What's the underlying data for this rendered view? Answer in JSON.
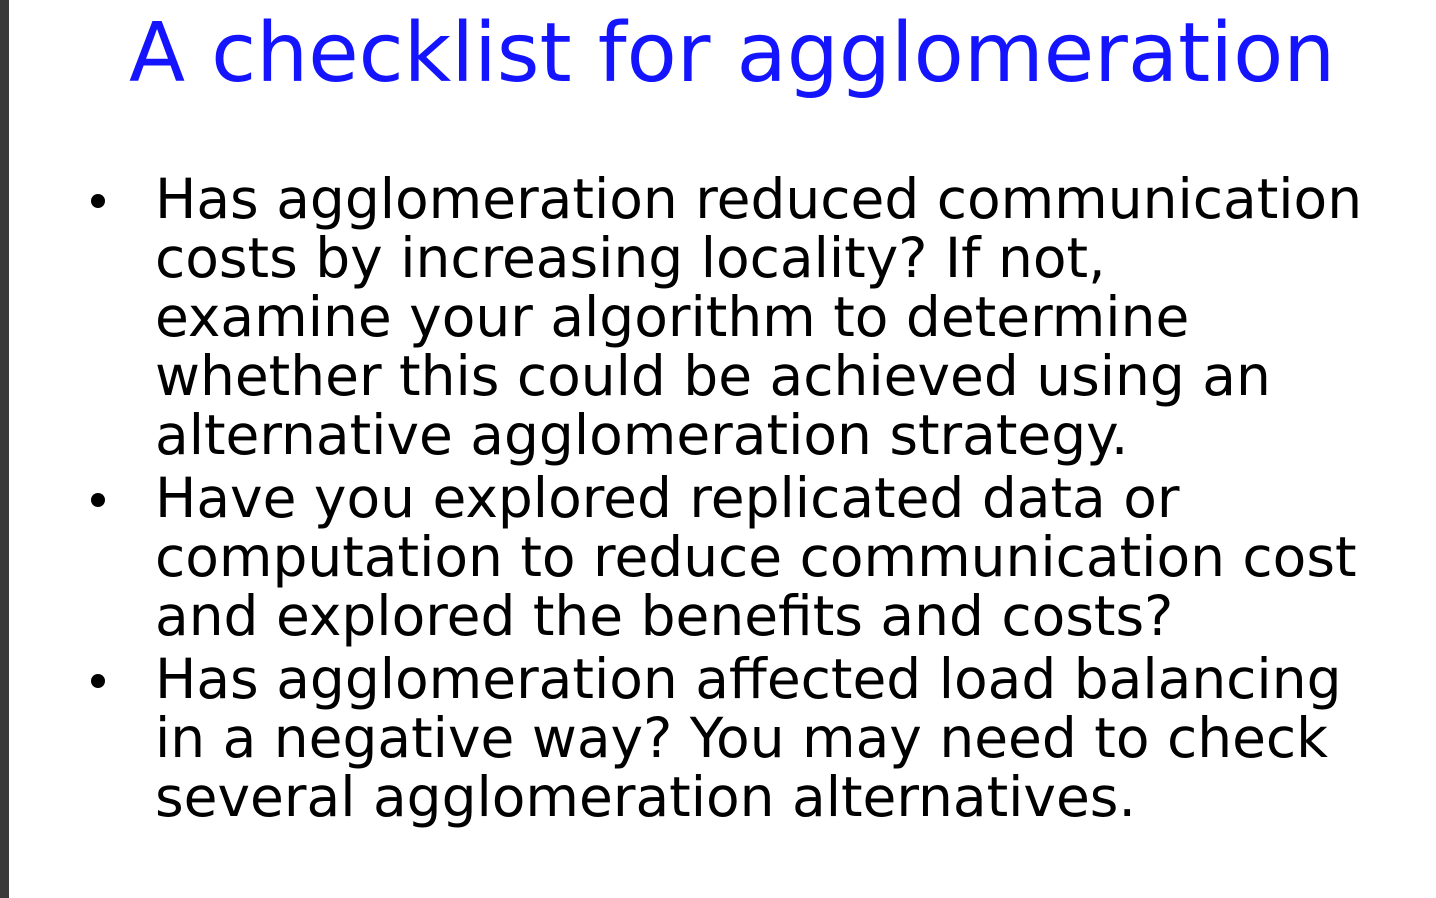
{
  "slide": {
    "title": "A checklist for agglomeration",
    "bullets": [
      "Has agglomeration reduced communication\ncosts by increasing locality? If not,\nexamine your algorithm to determine\nwhether this could be achieved using an\nalternative agglomeration strategy.",
      "Have you explored replicated data or\ncomputation to reduce communication cost\nand explored the benefits and costs?",
      "Has agglomeration affected load balancing\nin a negative way? You may need to check\nseveral agglomeration alternatives."
    ]
  },
  "colors": {
    "title": "#1414ff",
    "body_text": "#000000",
    "background": "#ffffff",
    "left_edge": "#3a3a3a"
  }
}
